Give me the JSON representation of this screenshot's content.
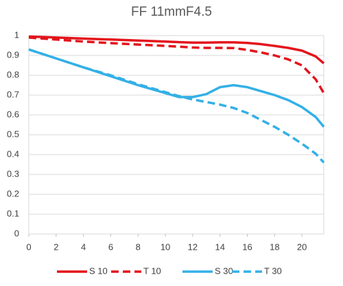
{
  "chart_data": {
    "type": "line",
    "title": "FF 11mmF4.5",
    "x": [
      0,
      2,
      4,
      6,
      8,
      10,
      11,
      12,
      13,
      14,
      15,
      16,
      17,
      18,
      19,
      20,
      21,
      21.6
    ],
    "series": [
      {
        "name": "S 10",
        "color": "#e3141c",
        "dash": false,
        "values": [
          0.995,
          0.99,
          0.985,
          0.98,
          0.975,
          0.97,
          0.967,
          0.965,
          0.965,
          0.966,
          0.966,
          0.963,
          0.957,
          0.948,
          0.938,
          0.924,
          0.895,
          0.86
        ]
      },
      {
        "name": "T 10",
        "color": "#e3141c",
        "dash": true,
        "values": [
          0.99,
          0.98,
          0.97,
          0.962,
          0.955,
          0.948,
          0.944,
          0.94,
          0.938,
          0.938,
          0.937,
          0.928,
          0.915,
          0.9,
          0.88,
          0.85,
          0.78,
          0.71
        ]
      },
      {
        "name": "S 30",
        "color": "#33b0e6",
        "dash": false,
        "values": [
          0.93,
          0.885,
          0.84,
          0.795,
          0.75,
          0.71,
          0.69,
          0.69,
          0.705,
          0.74,
          0.75,
          0.74,
          0.72,
          0.7,
          0.675,
          0.64,
          0.59,
          0.54
        ]
      },
      {
        "name": "T 30",
        "color": "#33b0e6",
        "dash": true,
        "values": [
          0.93,
          0.885,
          0.84,
          0.8,
          0.755,
          0.715,
          0.695,
          0.678,
          0.665,
          0.652,
          0.635,
          0.61,
          0.575,
          0.54,
          0.5,
          0.455,
          0.405,
          0.36
        ]
      }
    ],
    "xlim": [
      0,
      21.6
    ],
    "xticks": [
      0,
      2,
      4,
      6,
      8,
      10,
      12,
      14,
      16,
      18,
      20
    ],
    "ylim": [
      0,
      1
    ],
    "yticks": [
      0,
      0.1,
      0.2,
      0.3,
      0.4,
      0.5,
      0.6,
      0.7,
      0.8,
      0.9,
      1
    ],
    "grid": true,
    "legend": "bottom"
  }
}
